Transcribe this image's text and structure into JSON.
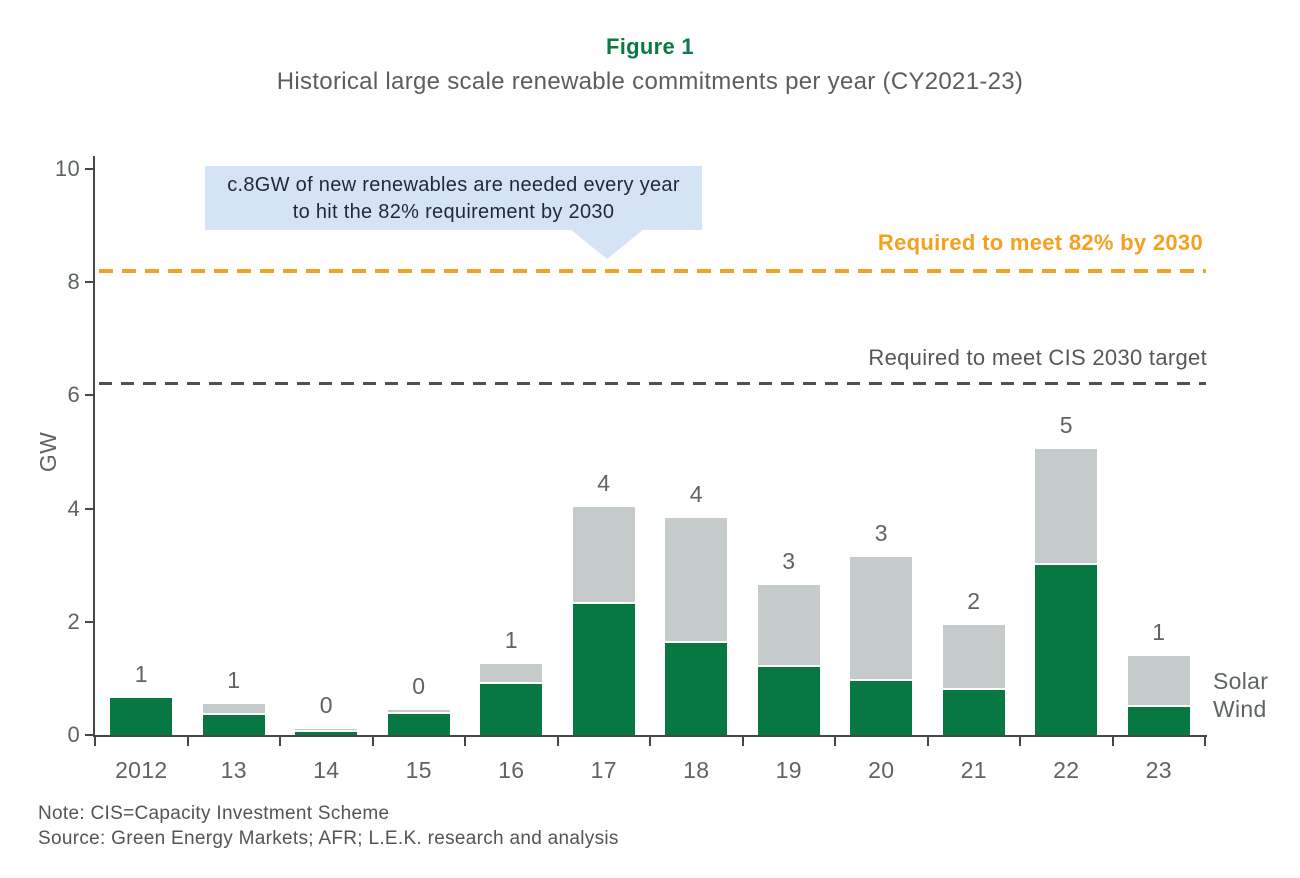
{
  "figure": {
    "label": "Figure 1",
    "title": "Historical large scale renewable commitments per year (CY2021-23)"
  },
  "annotation": {
    "line1": "c.8GW of new renewables are needed every year",
    "line2": "to hit the 82% requirement by 2030",
    "background_color": "#D5E3F7",
    "text_color": "#1F2A38"
  },
  "thresholds": [
    {
      "name": "82-percent-line",
      "label": "Required to meet 82% by 2030",
      "value_gw": 8.2,
      "color": "#F5A01F",
      "style": "dashed"
    },
    {
      "name": "cis-2030-line",
      "label": "Required to meet CIS 2030 target",
      "value_gw": 6.2,
      "color": "#55585B",
      "style": "dashed"
    }
  ],
  "legend": {
    "solar": "Solar",
    "wind": "Wind"
  },
  "chart_data": {
    "type": "bar",
    "stacked": true,
    "title": "Historical large scale renewable commitments per year (CY2021-23)",
    "xlabel": "",
    "ylabel": "GW",
    "ylim": [
      0,
      10
    ],
    "yticks": [
      0,
      2,
      4,
      6,
      8,
      10
    ],
    "grid": false,
    "legend_position": "right-of-last-bar",
    "categories": [
      "2012",
      "13",
      "14",
      "15",
      "16",
      "17",
      "18",
      "19",
      "20",
      "21",
      "22",
      "23"
    ],
    "series": [
      {
        "name": "Wind",
        "color": "#087843",
        "values": [
          0.65,
          0.35,
          0.05,
          0.37,
          0.9,
          2.32,
          1.63,
          1.2,
          0.95,
          0.8,
          3.0,
          0.5
        ]
      },
      {
        "name": "Solar",
        "color": "#C5CBCB",
        "values": [
          0.0,
          0.2,
          0.05,
          0.07,
          0.35,
          1.7,
          2.2,
          1.45,
          2.2,
          1.15,
          2.05,
          0.9
        ]
      }
    ],
    "bar_total_labels": [
      "1",
      "1",
      "0",
      "0",
      "1",
      "4",
      "4",
      "3",
      "3",
      "2",
      "5",
      "1"
    ],
    "reference_lines": [
      {
        "label": "Required to meet 82% by 2030",
        "value_gw": 8.2,
        "color": "#F5A01F"
      },
      {
        "label": "Required to meet CIS 2030 target",
        "value_gw": 6.2,
        "color": "#55585B"
      }
    ]
  },
  "footer": {
    "note": "Note: CIS=Capacity Investment Scheme",
    "source": "Source: Green Energy Markets; AFR; L.E.K. research and analysis"
  },
  "colors": {
    "wind_bar": "#087843",
    "solar_bar": "#C5CBCB",
    "figure_label": "#0B7A45",
    "axis": "#43484B",
    "text_gray": "#5E6366",
    "orange_accent": "#F5A01F"
  }
}
